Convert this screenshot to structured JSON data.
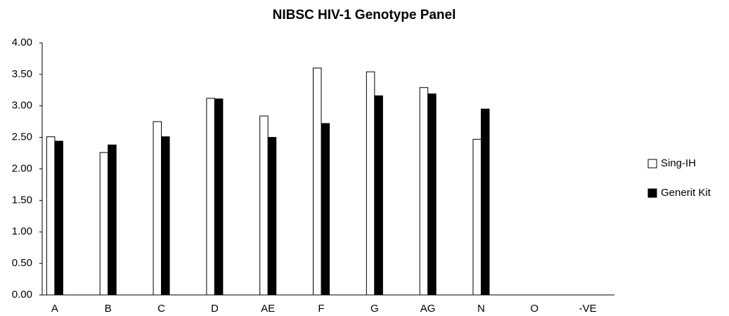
{
  "chart_data": {
    "type": "bar",
    "title": "NIBSC HIV-1 Genotype Panel",
    "categories": [
      "A",
      "B",
      "C",
      "D",
      "AE",
      "F",
      "G",
      "AG",
      "N",
      "O",
      "-VE"
    ],
    "series": [
      {
        "name": "Sing-IH",
        "color": "#ffffff",
        "values": [
          2.51,
          2.26,
          2.75,
          3.12,
          2.84,
          3.6,
          3.54,
          3.29,
          2.47,
          0,
          0
        ]
      },
      {
        "name": "Generit Kit",
        "color": "#000000",
        "values": [
          2.44,
          2.38,
          2.51,
          3.11,
          2.5,
          2.72,
          3.16,
          3.19,
          2.95,
          0,
          0
        ]
      }
    ],
    "ylim": [
      0,
      4
    ],
    "yticks": [
      {
        "value": 0,
        "label": "0.00"
      },
      {
        "value": 0.5,
        "label": "0.50"
      },
      {
        "value": 1,
        "label": "1.00"
      },
      {
        "value": 1.5,
        "label": "1.50"
      },
      {
        "value": 2,
        "label": "2.00"
      },
      {
        "value": 2.5,
        "label": "2.50"
      },
      {
        "value": 3,
        "label": "3.00"
      },
      {
        "value": 3.5,
        "label": "3.50"
      },
      {
        "value": 4,
        "label": "4.00"
      }
    ],
    "grid": false,
    "legend": "right"
  }
}
